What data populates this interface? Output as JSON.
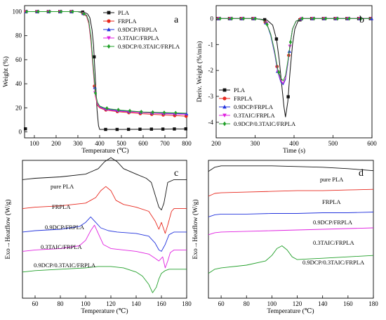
{
  "series_styles": [
    {
      "color": "#111111",
      "marker": "square"
    },
    {
      "color": "#e8281e",
      "marker": "circle"
    },
    {
      "color": "#2233dd",
      "marker": "triangle"
    },
    {
      "color": "#e020e0",
      "marker": "triangle-down"
    },
    {
      "color": "#22a02a",
      "marker": "diamond"
    }
  ],
  "chart_data": [
    {
      "panel": "a",
      "type": "line",
      "xlabel": "Temperature (℃)",
      "ylabel": "Weight (%)",
      "xlim": [
        55,
        800
      ],
      "ylim": [
        -5,
        105
      ],
      "xticks": [
        100,
        200,
        300,
        400,
        500,
        600,
        700,
        800
      ],
      "yticks": [
        0,
        20,
        40,
        60,
        80,
        100
      ],
      "legend_position": "top-right",
      "series": [
        {
          "name": "PLA",
          "x": [
            60,
            100,
            200,
            300,
            330,
            345,
            355,
            365,
            372,
            380,
            388,
            395,
            400,
            410,
            450,
            500,
            600,
            700,
            800
          ],
          "y": [
            100,
            100,
            100,
            100,
            99.5,
            98,
            95,
            85,
            72,
            45,
            18,
            5,
            2,
            2,
            2,
            2,
            2.2,
            2.3,
            2.5
          ]
        },
        {
          "name": "FRPLA",
          "x": [
            60,
            100,
            200,
            300,
            320,
            340,
            350,
            360,
            370,
            380,
            390,
            400,
            420,
            450,
            500,
            600,
            700,
            800
          ],
          "y": [
            100,
            100,
            100,
            100,
            99,
            96,
            90,
            75,
            52,
            30,
            22,
            20,
            18.5,
            17.5,
            16.5,
            15,
            14,
            13
          ]
        },
        {
          "name": "0.9DCP/FRPLA",
          "x": [
            60,
            100,
            200,
            300,
            320,
            340,
            350,
            360,
            370,
            380,
            390,
            400,
            420,
            450,
            500,
            600,
            700,
            800
          ],
          "y": [
            100,
            100,
            100,
            100,
            99,
            97,
            92,
            78,
            55,
            32,
            24,
            21,
            19.5,
            18.5,
            17.5,
            16,
            15.5,
            15
          ]
        },
        {
          "name": "0.3TAIC/FRPLA",
          "x": [
            60,
            100,
            200,
            300,
            320,
            340,
            350,
            360,
            370,
            380,
            390,
            400,
            420,
            450,
            500,
            600,
            700,
            800
          ],
          "y": [
            100,
            100,
            100,
            100,
            99,
            96.5,
            91,
            77,
            54,
            31,
            23,
            20.5,
            19,
            18,
            17,
            16,
            15,
            14.5
          ]
        },
        {
          "name": "0.9DCP/0.3TAIC/FRPLA",
          "x": [
            60,
            100,
            200,
            300,
            320,
            340,
            350,
            360,
            370,
            380,
            390,
            400,
            420,
            450,
            500,
            600,
            700,
            800
          ],
          "y": [
            100,
            100,
            100,
            100,
            99,
            97,
            92,
            79,
            56,
            33,
            24.5,
            21.5,
            20,
            19,
            18,
            16.5,
            16,
            15.5
          ]
        }
      ]
    },
    {
      "panel": "b",
      "type": "line",
      "xlabel": "Time (s)",
      "ylabel": "Deriv. Weight (%/min)",
      "xlim": [
        200,
        600
      ],
      "ylim": [
        -4.6,
        0.5
      ],
      "xticks": [
        200,
        300,
        400,
        500,
        600
      ],
      "yticks": [
        0,
        -1,
        -2,
        -3,
        -4
      ],
      "legend_position": "bottom-left",
      "series": [
        {
          "name": "PLA",
          "x": [
            200,
            300,
            330,
            345,
            355,
            362,
            368,
            374,
            378,
            384,
            390,
            396,
            402,
            410,
            420,
            450,
            500,
            600
          ],
          "y": [
            0,
            0,
            -0.05,
            -0.25,
            -0.8,
            -1.6,
            -2.5,
            -3.4,
            -3.8,
            -3.2,
            -2.0,
            -1.0,
            -0.4,
            -0.1,
            0,
            0,
            0,
            0
          ]
        },
        {
          "name": "FRPLA",
          "x": [
            200,
            300,
            320,
            330,
            340,
            350,
            358,
            366,
            372,
            378,
            384,
            390,
            396,
            405,
            420,
            500,
            600
          ],
          "y": [
            0,
            0,
            -0.05,
            -0.2,
            -0.6,
            -1.3,
            -2.0,
            -2.4,
            -2.5,
            -2.3,
            -1.7,
            -1.0,
            -0.4,
            -0.1,
            0,
            0,
            0
          ]
        },
        {
          "name": "0.9DCP/FRPLA",
          "x": [
            200,
            300,
            320,
            330,
            340,
            350,
            358,
            366,
            372,
            378,
            384,
            390,
            396,
            405,
            420,
            500,
            600
          ],
          "y": [
            0,
            0,
            -0.05,
            -0.2,
            -0.65,
            -1.35,
            -2.05,
            -2.45,
            -2.55,
            -2.35,
            -1.75,
            -1.0,
            -0.4,
            -0.1,
            0,
            0,
            0
          ]
        },
        {
          "name": "0.3TAIC/FRPLA",
          "x": [
            200,
            300,
            320,
            330,
            340,
            350,
            358,
            366,
            372,
            378,
            384,
            390,
            396,
            405,
            420,
            500,
            600
          ],
          "y": [
            0,
            0,
            -0.05,
            -0.2,
            -0.6,
            -1.3,
            -2.0,
            -2.4,
            -2.5,
            -2.3,
            -1.7,
            -1.0,
            -0.4,
            -0.1,
            0,
            0,
            0
          ]
        },
        {
          "name": "0.9DCP/0.3TAIC/FRPLA",
          "x": [
            200,
            300,
            320,
            330,
            340,
            350,
            358,
            366,
            372,
            378,
            384,
            390,
            396,
            405,
            420,
            500,
            600
          ],
          "y": [
            0,
            0,
            -0.05,
            -0.2,
            -0.6,
            -1.25,
            -1.95,
            -2.3,
            -2.4,
            -2.2,
            -1.65,
            -1.0,
            -0.4,
            -0.1,
            0,
            0,
            0
          ]
        }
      ]
    },
    {
      "panel": "c",
      "type": "line",
      "xlabel": "Temperature (℃)",
      "ylabel": "Exo→Heatflow (W/g)",
      "xlim": [
        50,
        180
      ],
      "ylim": [
        0,
        10
      ],
      "xticks": [
        60,
        80,
        100,
        120,
        140,
        160,
        180
      ],
      "yticks": [],
      "curves": [
        {
          "label": "pure PLA",
          "x": [
            50,
            60,
            80,
            100,
            110,
            115,
            120,
            125,
            130,
            140,
            148,
            152,
            155,
            158,
            160,
            162,
            165,
            170,
            180
          ],
          "y": [
            8.6,
            8.7,
            8.8,
            9.0,
            9.4,
            9.9,
            10.2,
            9.9,
            9.4,
            9.0,
            8.7,
            8.4,
            7.5,
            6.6,
            6.4,
            6.9,
            8.4,
            8.6,
            8.6
          ]
        },
        {
          "label": "FRPLA",
          "x": [
            50,
            60,
            80,
            100,
            108,
            112,
            116,
            120,
            124,
            130,
            140,
            150,
            155,
            158,
            160,
            163,
            165,
            168,
            170,
            180
          ],
          "y": [
            6.5,
            6.6,
            6.7,
            6.9,
            7.3,
            7.8,
            8.1,
            7.8,
            7.1,
            6.8,
            6.6,
            6.3,
            5.6,
            5.0,
            5.5,
            4.7,
            5.3,
            6.3,
            6.5,
            6.5
          ]
        },
        {
          "label": "0.9DCP/FRPLA",
          "x": [
            50,
            60,
            80,
            95,
            100,
            104,
            108,
            112,
            118,
            125,
            140,
            150,
            155,
            158,
            160,
            163,
            166,
            170,
            180
          ],
          "y": [
            4.8,
            4.9,
            5.0,
            5.2,
            5.5,
            5.9,
            5.5,
            5.1,
            4.9,
            4.8,
            4.7,
            4.5,
            4.0,
            3.5,
            3.4,
            3.9,
            4.6,
            4.8,
            4.8
          ]
        },
        {
          "label": "0.3TAIC/FRPLA",
          "x": [
            50,
            60,
            80,
            95,
            100,
            104,
            107,
            110,
            114,
            120,
            140,
            150,
            155,
            158,
            161,
            163,
            165,
            167,
            170,
            180
          ],
          "y": [
            3.4,
            3.5,
            3.6,
            3.8,
            4.2,
            4.9,
            5.3,
            4.7,
            3.9,
            3.6,
            3.4,
            3.2,
            2.9,
            2.7,
            3.0,
            2.2,
            2.7,
            3.3,
            3.5,
            3.5
          ]
        },
        {
          "label": "0.9DCP/0.3TAIC/FRPLA",
          "x": [
            50,
            60,
            80,
            100,
            110,
            120,
            130,
            140,
            145,
            150,
            153,
            156,
            158,
            160,
            163,
            166,
            170,
            180
          ],
          "y": [
            1.9,
            2.0,
            2.1,
            2.2,
            2.3,
            2.3,
            2.2,
            1.9,
            1.6,
            1.0,
            0.4,
            0.8,
            1.4,
            1.8,
            2.0,
            2.1,
            2.1,
            2.1
          ]
        }
      ]
    },
    {
      "panel": "d",
      "type": "line",
      "xlabel": "Temperature (℃)",
      "ylabel": "Exo→Heatflow (W/g)",
      "xlim": [
        50,
        180
      ],
      "ylim": [
        0,
        10
      ],
      "xticks": [
        60,
        80,
        100,
        120,
        140,
        160,
        180
      ],
      "yticks": [],
      "curves": [
        {
          "label": "pure PLA",
          "x": [
            50,
            55,
            60,
            80,
            100,
            120,
            140,
            160,
            180
          ],
          "y": [
            9.2,
            9.5,
            9.6,
            9.6,
            9.6,
            9.55,
            9.5,
            9.4,
            9.25
          ]
        },
        {
          "label": "FRPLA",
          "x": [
            50,
            55,
            60,
            80,
            100,
            120,
            140,
            160,
            180
          ],
          "y": [
            7.4,
            7.6,
            7.65,
            7.7,
            7.75,
            7.8,
            7.8,
            7.85,
            7.9
          ]
        },
        {
          "label": "0.9DCP/FRPLA",
          "x": [
            50,
            55,
            60,
            80,
            100,
            120,
            140,
            160,
            180
          ],
          "y": [
            5.9,
            6.05,
            6.1,
            6.1,
            6.15,
            6.15,
            6.2,
            6.2,
            6.25
          ]
        },
        {
          "label": "0.3TAIC/FRPLA",
          "x": [
            50,
            55,
            60,
            80,
            100,
            120,
            140,
            160,
            180
          ],
          "y": [
            4.6,
            4.75,
            4.8,
            4.85,
            4.9,
            4.95,
            5.0,
            5.05,
            5.1
          ]
        },
        {
          "label": "0.9DCP/0.3TAIC/FRPLA",
          "x": [
            50,
            55,
            60,
            80,
            95,
            100,
            104,
            108,
            112,
            116,
            120,
            130,
            140,
            160,
            180
          ],
          "y": [
            1.8,
            2.1,
            2.2,
            2.4,
            2.7,
            3.1,
            3.6,
            3.8,
            3.5,
            3.0,
            2.8,
            2.85,
            2.9,
            3.0,
            3.1
          ]
        }
      ]
    }
  ]
}
